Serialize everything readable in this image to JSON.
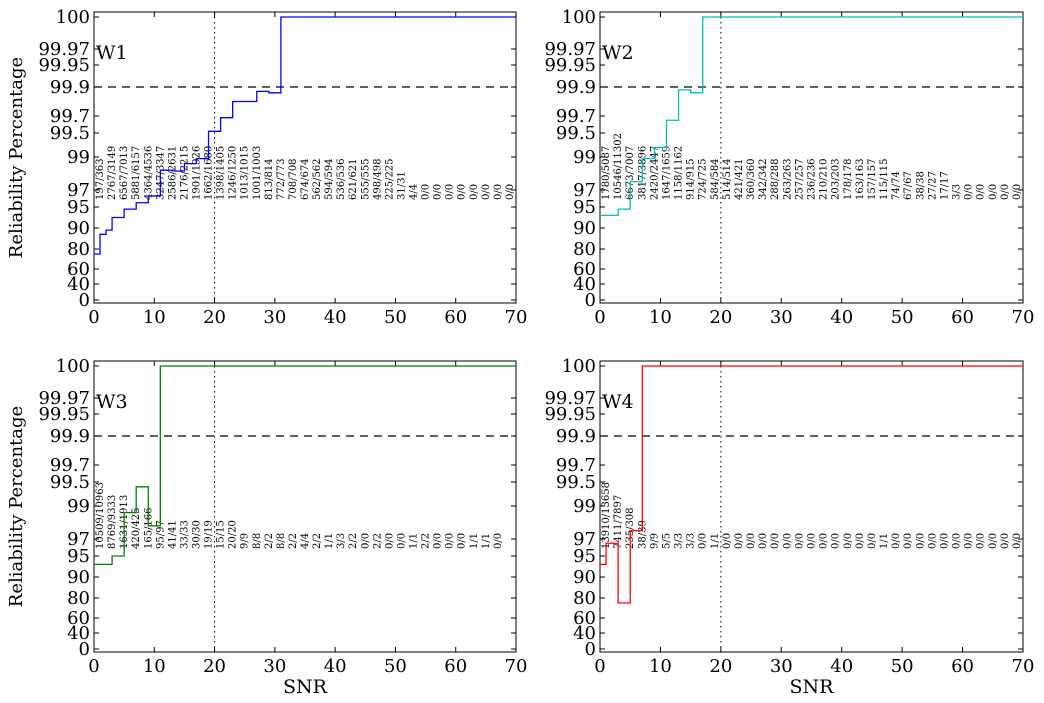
{
  "chart_data": [
    {
      "type": "line",
      "step": true,
      "label": "W1",
      "color": "#0000ff",
      "ylabel": "Reliability Percentage",
      "xlabel": "",
      "xlim": [
        0,
        70
      ],
      "xticks": [
        0,
        10,
        20,
        30,
        40,
        50,
        60,
        70
      ],
      "yticks": [
        "0",
        "40",
        "60",
        "80",
        "90",
        "95",
        "97",
        "99",
        "99.5",
        "99.7",
        "99.9",
        "99.95",
        "99.97",
        "100"
      ],
      "hline_y": "99.9",
      "vline_x": 20,
      "steps": [
        {
          "x": 0,
          "y": 75
        },
        {
          "x": 1,
          "y": 87
        },
        {
          "x": 2,
          "y": 89
        },
        {
          "x": 3,
          "y": 92.5
        },
        {
          "x": 5,
          "y": 94.5
        },
        {
          "x": 7,
          "y": 95.5
        },
        {
          "x": 9,
          "y": 96.3
        },
        {
          "x": 11,
          "y": 98.2
        },
        {
          "x": 13,
          "y": 98.15
        },
        {
          "x": 15,
          "y": 98.6
        },
        {
          "x": 17,
          "y": 98.9
        },
        {
          "x": 19,
          "y": 99.52
        },
        {
          "x": 21,
          "y": 99.68
        },
        {
          "x": 23,
          "y": 99.8
        },
        {
          "x": 27,
          "y": 99.87
        },
        {
          "x": 29,
          "y": 99.86
        },
        {
          "x": 31,
          "y": 100
        },
        {
          "x": 70,
          "y": 100
        }
      ],
      "annotations": [
        "197/363",
        "2767/3149",
        "6567/7013",
        "5881/6157",
        "4364/4536",
        "3247/3347",
        "2586/2631",
        "2176/2215",
        "1901/1926",
        "1662/1680",
        "1398/1405",
        "1246/1250",
        "1013/1015",
        "1001/1003",
        "813/814",
        "772/773",
        "708/708",
        "674/674",
        "562/562",
        "594/594",
        "536/536",
        "621/621",
        "555/555",
        "498/498",
        "225/225",
        "31/31",
        "4/4",
        "0/0",
        "0/0",
        "0/0",
        "0/0",
        "0/0",
        "0/0",
        "0/0",
        "0/0"
      ]
    },
    {
      "type": "line",
      "step": true,
      "label": "W2",
      "color": "#00bfbf",
      "ylabel": "",
      "xlabel": "",
      "xlim": [
        0,
        70
      ],
      "xticks": [
        0,
        10,
        20,
        30,
        40,
        50,
        60,
        70
      ],
      "yticks": [
        "0",
        "40",
        "60",
        "80",
        "90",
        "95",
        "97",
        "99",
        "99.5",
        "99.7",
        "99.9",
        "99.95",
        "99.97",
        "100"
      ],
      "hline_y": "99.9",
      "vline_x": 20,
      "steps": [
        {
          "x": 0,
          "y": 93
        },
        {
          "x": 3,
          "y": 94.5
        },
        {
          "x": 5,
          "y": 97.5
        },
        {
          "x": 7,
          "y": 98.9
        },
        {
          "x": 9,
          "y": 99.2
        },
        {
          "x": 11,
          "y": 99.65
        },
        {
          "x": 13,
          "y": 99.88
        },
        {
          "x": 15,
          "y": 99.86
        },
        {
          "x": 17,
          "y": 100
        },
        {
          "x": 70,
          "y": 100
        }
      ],
      "annotations": [
        "1780/5087",
        "10546/11302",
        "6673/7007",
        "3817/3896",
        "2420/2447",
        "1647/1659",
        "1158/1162",
        "914/915",
        "724/725",
        "584/584",
        "514/514",
        "421/421",
        "360/360",
        "342/342",
        "288/288",
        "263/263",
        "257/257",
        "236/236",
        "210/210",
        "203/203",
        "178/178",
        "163/163",
        "157/157",
        "115/115",
        "74/74",
        "67/67",
        "38/38",
        "27/27",
        "17/17",
        "3/3",
        "0/0",
        "0/0",
        "0/0",
        "0/0",
        "0/0"
      ]
    },
    {
      "type": "line",
      "step": true,
      "label": "W3",
      "color": "#008000",
      "ylabel": "Reliability Percentage",
      "xlabel": "SNR",
      "xlim": [
        0,
        70
      ],
      "xticks": [
        0,
        10,
        20,
        30,
        40,
        50,
        60,
        70
      ],
      "yticks": [
        "0",
        "40",
        "60",
        "80",
        "90",
        "95",
        "97",
        "99",
        "99.5",
        "99.7",
        "99.9",
        "99.95",
        "99.97",
        "100"
      ],
      "hline_y": "99.9",
      "vline_x": 20,
      "steps": [
        {
          "x": 0,
          "y": 93
        },
        {
          "x": 3,
          "y": 95
        },
        {
          "x": 5,
          "y": 98.6
        },
        {
          "x": 7,
          "y": 99.4
        },
        {
          "x": 9,
          "y": 97.8
        },
        {
          "x": 11,
          "y": 100
        },
        {
          "x": 70,
          "y": 100
        }
      ],
      "annotations": [
        "10509/10963",
        "8769/9333",
        "1631/1913",
        "420/425",
        "165/166",
        "95/97",
        "41/41",
        "33/33",
        "30/30",
        "19/19",
        "15/15",
        "20/20",
        "9/9",
        "8/8",
        "2/2",
        "8/8",
        "2/2",
        "4/4",
        "2/2",
        "1/1",
        "3/3",
        "2/2",
        "0/0",
        "2/2",
        "0/0",
        "0/0",
        "1/1",
        "2/2",
        "0/0",
        "0/0",
        "0/0",
        "1/1",
        "1/1",
        "0/0"
      ]
    },
    {
      "type": "line",
      "step": true,
      "label": "W4",
      "color": "#ff0000",
      "ylabel": "",
      "xlabel": "SNR",
      "xlim": [
        0,
        70
      ],
      "xticks": [
        0,
        10,
        20,
        30,
        40,
        50,
        60,
        70
      ],
      "yticks": [
        "0",
        "40",
        "60",
        "80",
        "90",
        "95",
        "97",
        "99",
        "99.5",
        "99.7",
        "99.9",
        "99.95",
        "99.97",
        "100"
      ],
      "hline_y": "99.9",
      "vline_x": 20,
      "steps": [
        {
          "x": 0,
          "y": 93
        },
        {
          "x": 1,
          "y": 96.5
        },
        {
          "x": 3,
          "y": 75
        },
        {
          "x": 5,
          "y": 97.5
        },
        {
          "x": 7,
          "y": 100
        },
        {
          "x": 70,
          "y": 100
        }
      ],
      "annotations": [
        "13910/13658",
        "7411/7897",
        "235/308",
        "38/39",
        "9/9",
        "5/5",
        "3/3",
        "3/3",
        "0/0",
        "1/1",
        "0/0",
        "0/0",
        "0/0",
        "0/0",
        "0/0",
        "0/0",
        "0/0",
        "0/0",
        "0/0",
        "0/0",
        "0/0",
        "0/0",
        "0/0",
        "1/1",
        "0/0",
        "0/0",
        "0/0",
        "0/0",
        "0/0",
        "0/0",
        "0/0",
        "0/0",
        "0/0",
        "0/0",
        "0/0"
      ]
    }
  ]
}
